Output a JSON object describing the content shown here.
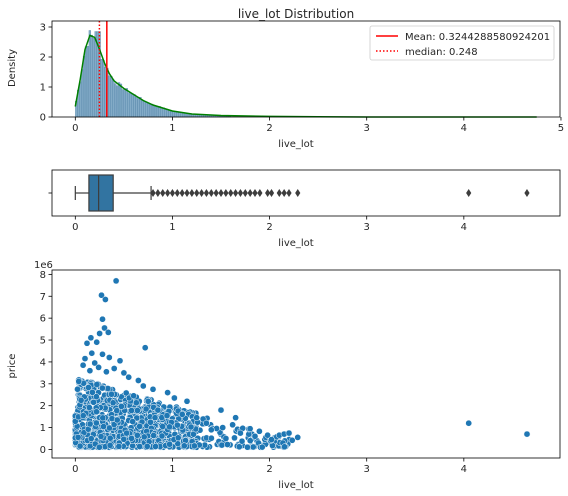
{
  "chart_data": [
    {
      "type": "histogram",
      "title": "live_lot Distribution",
      "xlabel": "live_lot",
      "ylabel": "Density",
      "xlim": [
        -0.24,
        4.99
      ],
      "ylim": [
        0,
        3.2
      ],
      "xticks": [
        "0",
        "1",
        "2",
        "3",
        "4",
        "5"
      ],
      "yticks": [
        "0",
        "1",
        "2",
        "3"
      ],
      "bar_color": "#5a8fb4",
      "kde_color": "#008000",
      "kde": {
        "x": [
          0.0,
          0.05,
          0.1,
          0.15,
          0.2,
          0.25,
          0.3,
          0.35,
          0.4,
          0.5,
          0.6,
          0.7,
          0.8,
          0.9,
          1.0,
          1.2,
          1.5,
          2.0,
          2.5,
          3.0,
          4.0,
          4.75
        ],
        "y": [
          0.35,
          1.25,
          2.25,
          2.72,
          2.65,
          2.25,
          1.8,
          1.45,
          1.2,
          0.95,
          0.75,
          0.55,
          0.4,
          0.3,
          0.2,
          0.1,
          0.05,
          0.02,
          0.01,
          0.0,
          0.0,
          0.0
        ]
      },
      "legend_position": "upper-right",
      "legend": [
        {
          "label": "Mean: 0.3244288580924201",
          "style": "solid",
          "color": "#ff0000",
          "value": 0.3244288580924201
        },
        {
          "label": "median: 0.248",
          "style": "dotted",
          "color": "#ff0000",
          "value": 0.248
        }
      ]
    },
    {
      "type": "boxplot",
      "xlabel": "live_lot",
      "xlim": [
        -0.24,
        4.99
      ],
      "xticks": [
        "0",
        "1",
        "2",
        "3",
        "4"
      ],
      "box_color": "#3274a1",
      "whisker_low": 0.0,
      "q1": 0.14,
      "median": 0.24,
      "q3": 0.39,
      "whisker_high": 0.78,
      "outliers": [
        0.8,
        0.85,
        0.9,
        0.95,
        1.0,
        1.05,
        1.1,
        1.15,
        1.2,
        1.25,
        1.3,
        1.35,
        1.4,
        1.45,
        1.5,
        1.55,
        1.6,
        1.65,
        1.7,
        1.75,
        1.8,
        1.85,
        1.9,
        1.98,
        2.02,
        2.1,
        2.15,
        2.2,
        2.29,
        4.05,
        4.65
      ]
    },
    {
      "type": "scatter",
      "xlabel": "live_lot",
      "ylabel": "price",
      "y_offset_label": "1e6",
      "xlim": [
        -0.24,
        4.99
      ],
      "ylim": [
        -0.39,
        8.2
      ],
      "xticks": [
        "0",
        "1",
        "2",
        "3",
        "4"
      ],
      "yticks": [
        "0",
        "1",
        "2",
        "3",
        "4",
        "5",
        "6",
        "7",
        "8"
      ],
      "point_color": "#1f77b4",
      "points": [
        [
          0.42,
          7.7
        ],
        [
          0.27,
          7.05
        ],
        [
          0.31,
          6.85
        ],
        [
          0.28,
          5.95
        ],
        [
          0.3,
          5.55
        ],
        [
          0.34,
          5.35
        ],
        [
          0.25,
          5.3
        ],
        [
          0.22,
          4.9
        ],
        [
          0.12,
          4.85
        ],
        [
          0.16,
          5.1
        ],
        [
          0.72,
          4.65
        ],
        [
          0.17,
          4.4
        ],
        [
          0.28,
          4.35
        ],
        [
          0.35,
          4.2
        ],
        [
          0.1,
          4.15
        ],
        [
          0.46,
          4.05
        ],
        [
          0.2,
          3.95
        ],
        [
          0.08,
          3.85
        ],
        [
          0.24,
          3.75
        ],
        [
          0.4,
          3.7
        ],
        [
          0.15,
          3.6
        ],
        [
          0.32,
          3.55
        ],
        [
          0.5,
          3.5
        ],
        [
          0.55,
          3.3
        ],
        [
          0.65,
          3.15
        ],
        [
          0.7,
          2.9
        ],
        [
          0.8,
          2.75
        ],
        [
          0.95,
          2.6
        ],
        [
          1.02,
          2.35
        ],
        [
          1.15,
          2.2
        ],
        [
          1.25,
          1.45
        ],
        [
          1.35,
          1.2
        ],
        [
          1.5,
          1.8
        ],
        [
          1.65,
          1.45
        ],
        [
          1.8,
          0.95
        ],
        [
          1.98,
          0.65
        ],
        [
          2.02,
          0.45
        ],
        [
          2.1,
          0.65
        ],
        [
          2.15,
          0.7
        ],
        [
          2.2,
          0.75
        ],
        [
          2.29,
          0.55
        ],
        [
          4.05,
          1.2
        ],
        [
          4.65,
          0.7
        ],
        [
          0.6,
          2.45
        ],
        [
          0.75,
          2.2
        ],
        [
          0.85,
          1.8
        ],
        [
          1.1,
          1.6
        ],
        [
          0.9,
          1.05
        ],
        [
          1.4,
          0.9
        ],
        [
          1.7,
          0.75
        ],
        [
          1.85,
          0.6
        ],
        [
          1.55,
          0.5
        ]
      ]
    }
  ]
}
